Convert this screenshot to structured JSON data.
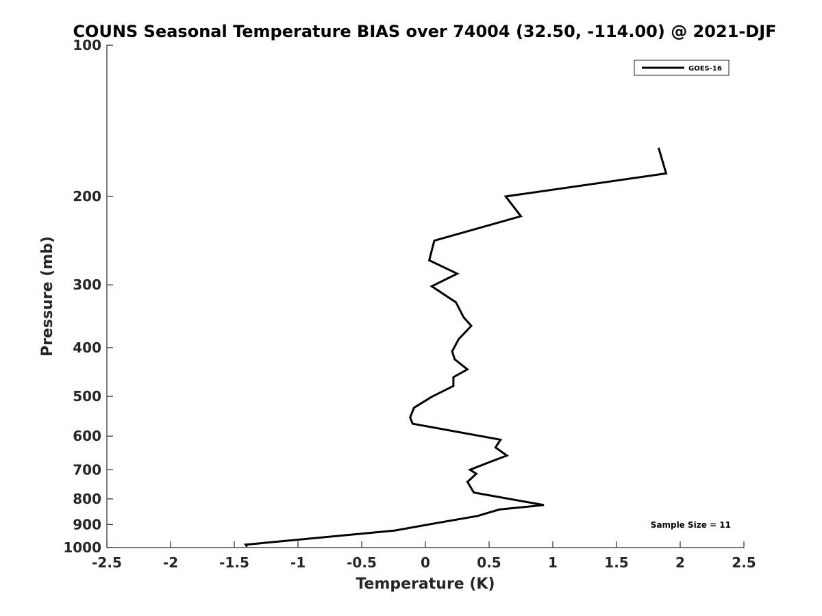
{
  "chart_data": {
    "type": "line",
    "title": "COUNS Seasonal Temperature BIAS over 74004 (32.50, -114.00) @ 2021-DJF",
    "xlabel": "Temperature (K)",
    "ylabel": "Pressure (mb)",
    "xlim": [
      -2.5,
      2.5
    ],
    "ylim": [
      1000,
      100
    ],
    "yscale": "log",
    "y_reversed": true,
    "x_ticks": [
      -2.5,
      -2,
      -1.5,
      -1,
      -0.5,
      0,
      0.5,
      1,
      1.5,
      2,
      2.5
    ],
    "x_tick_labels": [
      "-2.5",
      "-2",
      "-1.5",
      "-1",
      "-0.5",
      "0",
      "0.5",
      "1",
      "1.5",
      "2",
      "2.5"
    ],
    "y_ticks": [
      100,
      200,
      300,
      400,
      500,
      600,
      700,
      800,
      900,
      1000
    ],
    "y_tick_labels": [
      "100",
      "200",
      "300",
      "400",
      "500",
      "600",
      "700",
      "800",
      "900",
      "1000"
    ],
    "grid": false,
    "legend_position": "top-right",
    "series": [
      {
        "name": "GOES-16",
        "color": "#000000",
        "points": [
          {
            "x": 1.83,
            "y": 160
          },
          {
            "x": 1.89,
            "y": 180
          },
          {
            "x": 0.63,
            "y": 200
          },
          {
            "x": 0.75,
            "y": 219
          },
          {
            "x": 0.07,
            "y": 245
          },
          {
            "x": 0.03,
            "y": 268
          },
          {
            "x": 0.25,
            "y": 285
          },
          {
            "x": 0.05,
            "y": 302
          },
          {
            "x": 0.24,
            "y": 325
          },
          {
            "x": 0.3,
            "y": 348
          },
          {
            "x": 0.36,
            "y": 362
          },
          {
            "x": 0.26,
            "y": 385
          },
          {
            "x": 0.21,
            "y": 407
          },
          {
            "x": 0.23,
            "y": 422
          },
          {
            "x": 0.33,
            "y": 442
          },
          {
            "x": 0.22,
            "y": 458
          },
          {
            "x": 0.22,
            "y": 477
          },
          {
            "x": 0.05,
            "y": 501
          },
          {
            "x": -0.09,
            "y": 527
          },
          {
            "x": -0.12,
            "y": 551
          },
          {
            "x": -0.1,
            "y": 567
          },
          {
            "x": 0.59,
            "y": 610
          },
          {
            "x": 0.55,
            "y": 632
          },
          {
            "x": 0.64,
            "y": 656
          },
          {
            "x": 0.51,
            "y": 675
          },
          {
            "x": 0.35,
            "y": 700
          },
          {
            "x": 0.4,
            "y": 713
          },
          {
            "x": 0.33,
            "y": 740
          },
          {
            "x": 0.38,
            "y": 777
          },
          {
            "x": 0.93,
            "y": 823
          },
          {
            "x": 0.58,
            "y": 840
          },
          {
            "x": 0.41,
            "y": 865
          },
          {
            "x": 0.0,
            "y": 902
          },
          {
            "x": -0.24,
            "y": 925
          },
          {
            "x": -1.41,
            "y": 987
          },
          {
            "x": -1.4,
            "y": 996
          }
        ]
      }
    ],
    "annotation": "Sample Size = 11"
  }
}
